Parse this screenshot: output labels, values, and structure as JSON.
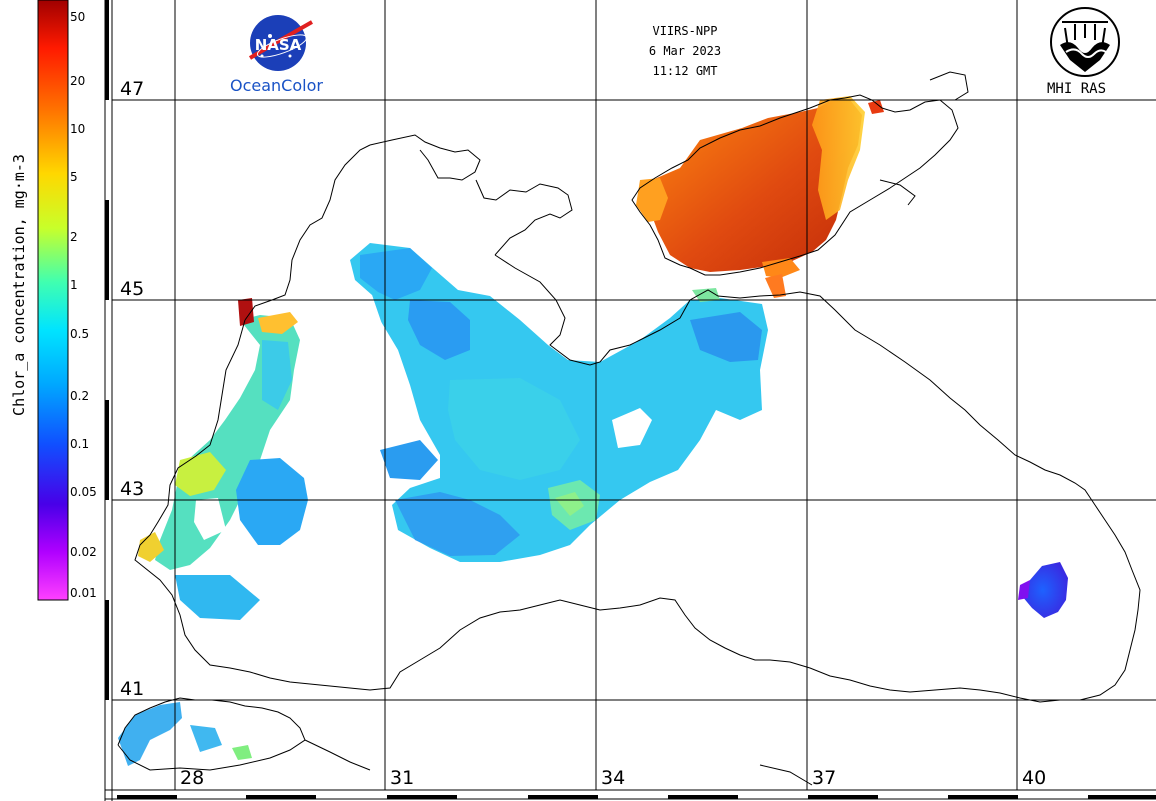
{
  "sensor": "VIIRS-NPP",
  "date": "6 Mar 2023",
  "time": "11:12 GMT",
  "logos": {
    "nasa": "NASA",
    "nasa_caption": "OceanColor",
    "mhi": "MHI RAS"
  },
  "colorbar": {
    "title": "Chlor_a concentration, mg·m-3",
    "ticks": [
      "50",
      "20",
      "10",
      "5",
      "2",
      "1",
      "0.5",
      "0.2",
      "0.1",
      "0.05",
      "0.02",
      "0.01"
    ],
    "colors": [
      "#b00000",
      "#ff2000",
      "#ff8000",
      "#ffe000",
      "#c0ff30",
      "#40ffb0",
      "#00e0ff",
      "#00a0ff",
      "#2040ff",
      "#4000e0",
      "#b000ff",
      "#ff00ff"
    ]
  },
  "latitude_labels": [
    "47",
    "45",
    "43",
    "41"
  ],
  "longitude_labels": [
    "28",
    "31",
    "34",
    "37",
    "40"
  ],
  "legend_icons": {
    "nasa": "nasa-meatball-icon",
    "mhi": "mhi-ras-emblem-icon"
  }
}
